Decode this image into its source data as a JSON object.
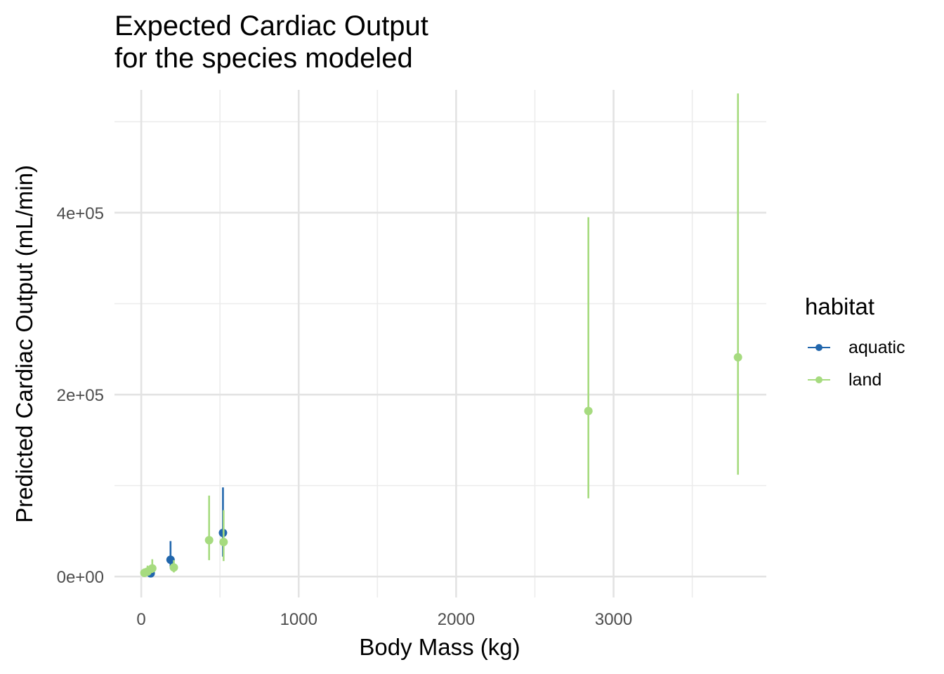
{
  "chart_data": {
    "type": "scatter",
    "title_lines": [
      "Expected Cardiac Output",
      "for the species modeled"
    ],
    "xlabel": "Body Mass (kg)",
    "ylabel": "Predicted Cardiac Output (mL/min)",
    "xlim": [
      -170,
      3970
    ],
    "ylim": [
      -23000,
      535000
    ],
    "x_ticks": [
      0,
      1000,
      2000,
      3000
    ],
    "x_tick_labels": [
      "0",
      "1000",
      "2000",
      "3000"
    ],
    "y_ticks": [
      0,
      200000,
      400000
    ],
    "y_tick_labels": [
      "0e+00",
      "2e+05",
      "4e+05"
    ],
    "grid": true,
    "legend": {
      "title": "habitat",
      "placement": "right"
    },
    "series": [
      {
        "name": "aquatic",
        "color": "#2166ac",
        "points": [
          {
            "x": 60,
            "y": 3500,
            "ymin": 1500,
            "ymax": 8000
          },
          {
            "x": 186,
            "y": 18500,
            "ymin": 9000,
            "ymax": 39000
          },
          {
            "x": 519,
            "y": 48000,
            "ymin": 22000,
            "ymax": 98000
          }
        ]
      },
      {
        "name": "land",
        "color": "#a6db7f",
        "points": [
          {
            "x": 20,
            "y": 4000,
            "ymin": 2000,
            "ymax": 9000
          },
          {
            "x": 40,
            "y": 5500,
            "ymin": 2500,
            "ymax": 12000
          },
          {
            "x": 70,
            "y": 9000,
            "ymin": 4000,
            "ymax": 19000
          },
          {
            "x": 207,
            "y": 10000,
            "ymin": 4500,
            "ymax": 18000
          },
          {
            "x": 431,
            "y": 40000,
            "ymin": 18000,
            "ymax": 89000
          },
          {
            "x": 523,
            "y": 38000,
            "ymin": 17000,
            "ymax": 73000
          },
          {
            "x": 2840,
            "y": 182000,
            "ymin": 86000,
            "ymax": 395000
          },
          {
            "x": 3790,
            "y": 241000,
            "ymin": 112000,
            "ymax": 531000
          }
        ]
      }
    ]
  }
}
